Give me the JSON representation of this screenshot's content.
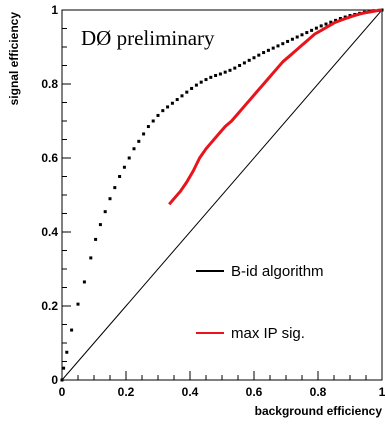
{
  "chart_data": {
    "type": "scatter",
    "title": "",
    "annotation": "DØ preliminary",
    "xlabel": "background efficiency",
    "ylabel": "signal efficiency",
    "xlim": [
      0,
      1
    ],
    "ylim": [
      0,
      1
    ],
    "x_ticks": [
      "0",
      "0.2",
      "0.4",
      "0.6",
      "0.8",
      "1"
    ],
    "y_ticks": [
      "0",
      "0.2",
      "0.4",
      "0.6",
      "0.8",
      "1"
    ],
    "reference_line": [
      [
        0,
        0
      ],
      [
        1,
        1
      ]
    ],
    "legend_placement": "bottom-right",
    "series": [
      {
        "name": "B-id algorithm",
        "color": "#000000",
        "style": "markers",
        "points": [
          [
            0.0,
            0.0
          ],
          [
            0.005,
            0.032
          ],
          [
            0.015,
            0.075
          ],
          [
            0.03,
            0.135
          ],
          [
            0.05,
            0.205
          ],
          [
            0.07,
            0.265
          ],
          [
            0.09,
            0.33
          ],
          [
            0.105,
            0.38
          ],
          [
            0.12,
            0.42
          ],
          [
            0.135,
            0.455
          ],
          [
            0.15,
            0.49
          ],
          [
            0.165,
            0.52
          ],
          [
            0.18,
            0.55
          ],
          [
            0.195,
            0.575
          ],
          [
            0.21,
            0.6
          ],
          [
            0.225,
            0.625
          ],
          [
            0.24,
            0.645
          ],
          [
            0.255,
            0.665
          ],
          [
            0.27,
            0.685
          ],
          [
            0.285,
            0.7
          ],
          [
            0.3,
            0.715
          ],
          [
            0.315,
            0.728
          ],
          [
            0.33,
            0.738
          ],
          [
            0.345,
            0.748
          ],
          [
            0.36,
            0.758
          ],
          [
            0.375,
            0.768
          ],
          [
            0.39,
            0.778
          ],
          [
            0.405,
            0.788
          ],
          [
            0.42,
            0.797
          ],
          [
            0.435,
            0.805
          ],
          [
            0.45,
            0.812
          ],
          [
            0.465,
            0.818
          ],
          [
            0.48,
            0.823
          ],
          [
            0.495,
            0.827
          ],
          [
            0.51,
            0.832
          ],
          [
            0.525,
            0.837
          ],
          [
            0.54,
            0.843
          ],
          [
            0.555,
            0.85
          ],
          [
            0.57,
            0.857
          ],
          [
            0.585,
            0.864
          ],
          [
            0.6,
            0.871
          ],
          [
            0.615,
            0.878
          ],
          [
            0.63,
            0.885
          ],
          [
            0.645,
            0.891
          ],
          [
            0.66,
            0.897
          ],
          [
            0.675,
            0.903
          ],
          [
            0.69,
            0.909
          ],
          [
            0.705,
            0.915
          ],
          [
            0.72,
            0.921
          ],
          [
            0.735,
            0.927
          ],
          [
            0.75,
            0.933
          ],
          [
            0.765,
            0.939
          ],
          [
            0.78,
            0.945
          ],
          [
            0.795,
            0.951
          ],
          [
            0.81,
            0.957
          ],
          [
            0.825,
            0.962
          ],
          [
            0.84,
            0.967
          ],
          [
            0.855,
            0.972
          ],
          [
            0.87,
            0.977
          ],
          [
            0.885,
            0.981
          ],
          [
            0.9,
            0.985
          ],
          [
            0.915,
            0.988
          ],
          [
            0.93,
            0.991
          ],
          [
            0.945,
            0.994
          ],
          [
            0.96,
            0.996
          ],
          [
            0.975,
            0.998
          ],
          [
            0.99,
            0.999
          ],
          [
            1.0,
            1.0
          ]
        ]
      },
      {
        "name": "max IP sig.",
        "color": "#e8131b",
        "style": "line",
        "points": [
          [
            0.335,
            0.475
          ],
          [
            0.35,
            0.49
          ],
          [
            0.37,
            0.51
          ],
          [
            0.39,
            0.535
          ],
          [
            0.41,
            0.565
          ],
          [
            0.43,
            0.6
          ],
          [
            0.45,
            0.625
          ],
          [
            0.47,
            0.645
          ],
          [
            0.49,
            0.665
          ],
          [
            0.51,
            0.685
          ],
          [
            0.53,
            0.7
          ],
          [
            0.55,
            0.72
          ],
          [
            0.57,
            0.74
          ],
          [
            0.59,
            0.76
          ],
          [
            0.61,
            0.78
          ],
          [
            0.63,
            0.8
          ],
          [
            0.65,
            0.82
          ],
          [
            0.67,
            0.84
          ],
          [
            0.69,
            0.86
          ],
          [
            0.71,
            0.875
          ],
          [
            0.73,
            0.89
          ],
          [
            0.75,
            0.905
          ],
          [
            0.77,
            0.92
          ],
          [
            0.79,
            0.935
          ],
          [
            0.81,
            0.945
          ],
          [
            0.83,
            0.955
          ],
          [
            0.85,
            0.965
          ],
          [
            0.87,
            0.972
          ],
          [
            0.89,
            0.978
          ],
          [
            0.91,
            0.984
          ],
          [
            0.93,
            0.989
          ],
          [
            0.95,
            0.993
          ],
          [
            0.97,
            0.996
          ],
          [
            0.99,
            0.999
          ],
          [
            1.0,
            1.0
          ]
        ]
      }
    ]
  }
}
